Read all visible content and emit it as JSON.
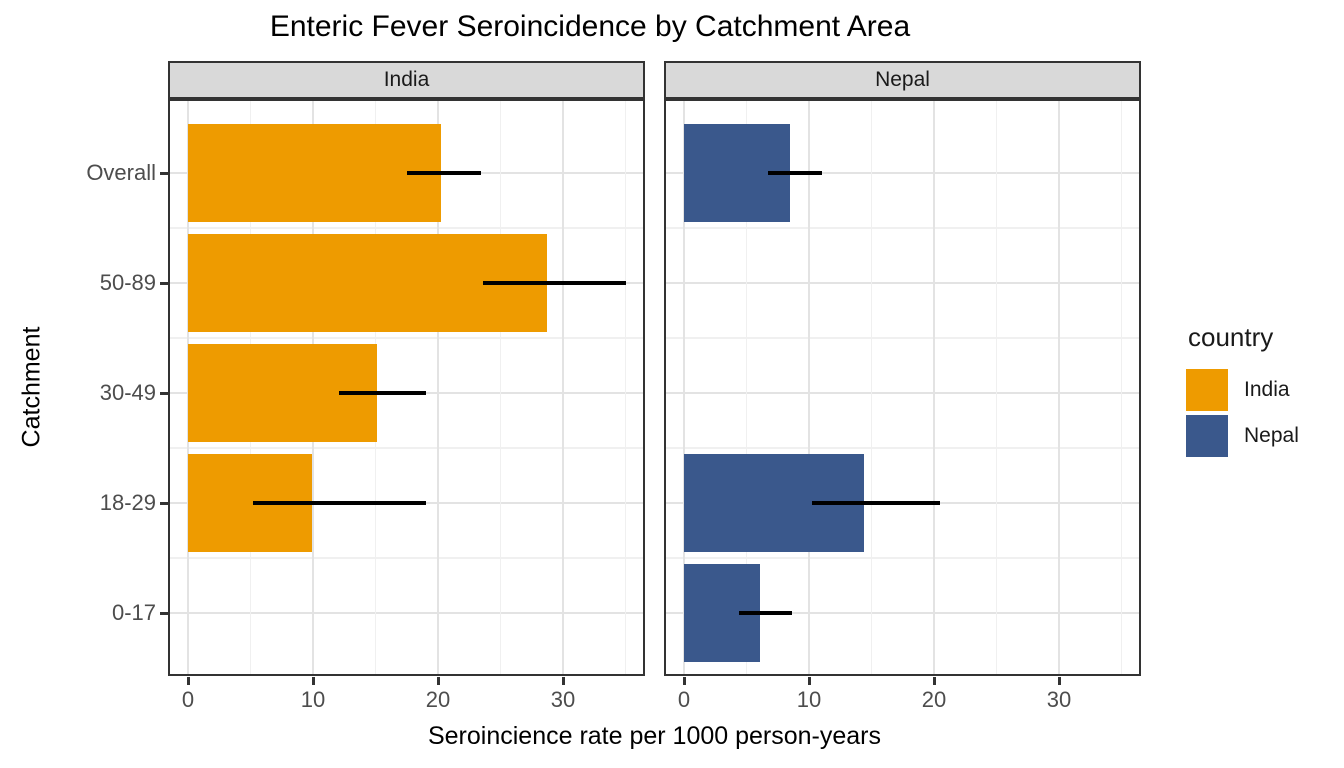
{
  "title": "Enteric Fever Seroincidence by Catchment Area",
  "legend": {
    "title": "country",
    "items": [
      {
        "label": "India",
        "color": "#EE9B00"
      },
      {
        "label": "Nepal",
        "color": "#3A588C"
      }
    ]
  },
  "styles": {
    "strip_background": "#D9D9D9",
    "panel_border": "#333333",
    "grid_major_color": "#E3E3E3",
    "grid_minor_color": "#F0F0F0",
    "error_bar_color": "#000000",
    "axis_text_color": "#4d4d4d"
  },
  "chart_data": {
    "type": "bar",
    "orientation": "horizontal",
    "title": "Enteric Fever Seroincidence by Catchment Area",
    "xlabel": "Seroincience rate per 1000 person-years",
    "ylabel": "Catchment",
    "facets": [
      "India",
      "Nepal"
    ],
    "categories": [
      "Overall",
      "50-89",
      "30-49",
      "18-29",
      "0-17"
    ],
    "x_ticks": [
      0,
      10,
      20,
      30
    ],
    "x_minor_ticks": [
      5,
      15,
      25,
      35
    ],
    "xlim": [
      -1.6,
      36.6
    ],
    "grid": true,
    "legend_position": "right",
    "series": [
      {
        "name": "India",
        "facet": "India",
        "color": "#EE9B00",
        "values": [
          20.2,
          28.7,
          15.1,
          9.9,
          null
        ],
        "ci_low": [
          17.5,
          23.6,
          12.1,
          5.2,
          null
        ],
        "ci_high": [
          23.4,
          35.0,
          19.0,
          19.0,
          null
        ]
      },
      {
        "name": "Nepal",
        "facet": "Nepal",
        "color": "#3A588C",
        "values": [
          8.5,
          null,
          null,
          14.4,
          6.1
        ],
        "ci_low": [
          6.7,
          null,
          null,
          10.2,
          4.4
        ],
        "ci_high": [
          11.0,
          null,
          null,
          20.5,
          8.6
        ]
      }
    ]
  }
}
